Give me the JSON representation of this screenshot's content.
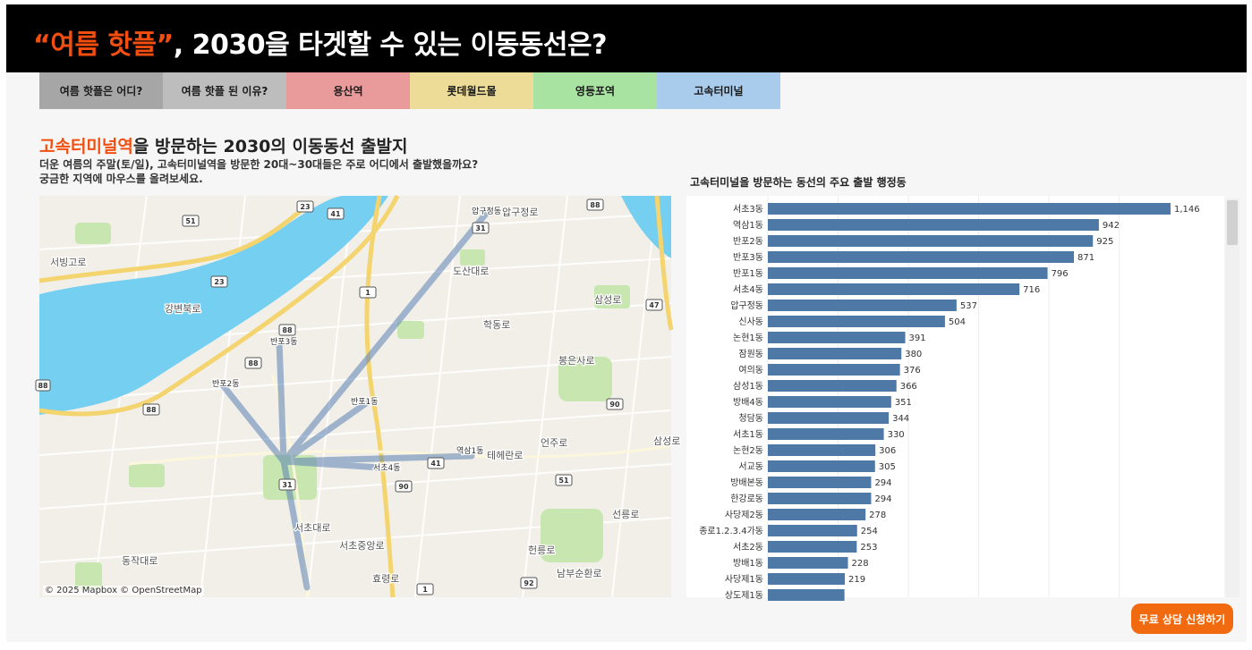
{
  "header": {
    "title_highlight": "“여름 핫플”",
    "title_rest": ", 2030을 타겟할 수 있는 이동동선은?"
  },
  "tabs": [
    {
      "label": "여름 핫플은 어디?",
      "color": "#a6a6a6"
    },
    {
      "label": "여름 핫플 된 이유?",
      "color": "#bdbdbd"
    },
    {
      "label": "용산역",
      "color": "#e99a9a"
    },
    {
      "label": "롯데월드몰",
      "color": "#ecdc98"
    },
    {
      "label": "영등포역",
      "color": "#a9e3a2"
    },
    {
      "label": "고속터미널",
      "color": "#a9ccec"
    }
  ],
  "section": {
    "title_highlight": "고속터미널역",
    "title_rest": "을 방문하는 2030의 이동동선 출발지",
    "desc_line1": "더운 여름의 주말(토/일), 고속터미널역을 방문한 20대~30대들은 주로 어디에서 출발했을까요?",
    "desc_line2": "궁금한 지역에 마우스를 올려보세요."
  },
  "map": {
    "attribution": "© 2025 Mapbox  © OpenStreetMap",
    "district_labels": [
      "압구정동",
      "반포3동",
      "반포2동",
      "반포1동",
      "역삼1동",
      "서초4동"
    ],
    "road_labels": [
      "압구정로",
      "서빙고로",
      "강변북로",
      "도산대로",
      "학동로",
      "봉은사로",
      "삼성로",
      "테헤란로",
      "언주로",
      "서초대로",
      "서초중앙로",
      "효령로",
      "남부순환로",
      "동작대로",
      "선릉로",
      "삼성로",
      "헌릉로"
    ],
    "road_numbers": [
      "23",
      "41",
      "31",
      "88",
      "23",
      "1",
      "88",
      "88",
      "47",
      "88",
      "90",
      "41",
      "90",
      "31",
      "51",
      "92",
      "1",
      "88"
    ]
  },
  "chart_title": "고속터미널을 방문하는 동선의 주요 출발 행정동",
  "chart_data": {
    "type": "bar",
    "orientation": "horizontal",
    "bar_color": "#4e79a7",
    "categories": [
      "서초3동",
      "역삼1동",
      "반포2동",
      "반포3동",
      "반포1동",
      "서초4동",
      "압구정동",
      "신사동",
      "논현1동",
      "잠원동",
      "여의동",
      "삼성1동",
      "방배4동",
      "청담동",
      "서초1동",
      "논현2동",
      "서교동",
      "방배본동",
      "한강로동",
      "사당제2동",
      "종로1.2.3.4가동",
      "서초2동",
      "방배1동",
      "사당제1동",
      "상도제1동"
    ],
    "values": [
      1146,
      942,
      925,
      871,
      796,
      716,
      537,
      504,
      391,
      380,
      376,
      366,
      351,
      344,
      330,
      306,
      305,
      294,
      294,
      278,
      254,
      253,
      228,
      219,
      218
    ],
    "value_labels": [
      "1,146",
      "942",
      "925",
      "871",
      "796",
      "716",
      "537",
      "504",
      "391",
      "380",
      "376",
      "366",
      "351",
      "344",
      "330",
      "306",
      "305",
      "294",
      "294",
      "278",
      "254",
      "253",
      "228",
      "219",
      ""
    ],
    "xlim": [
      0,
      1146
    ]
  },
  "cta": {
    "label": "무료 상담 신청하기",
    "color": "#f26a0f"
  }
}
